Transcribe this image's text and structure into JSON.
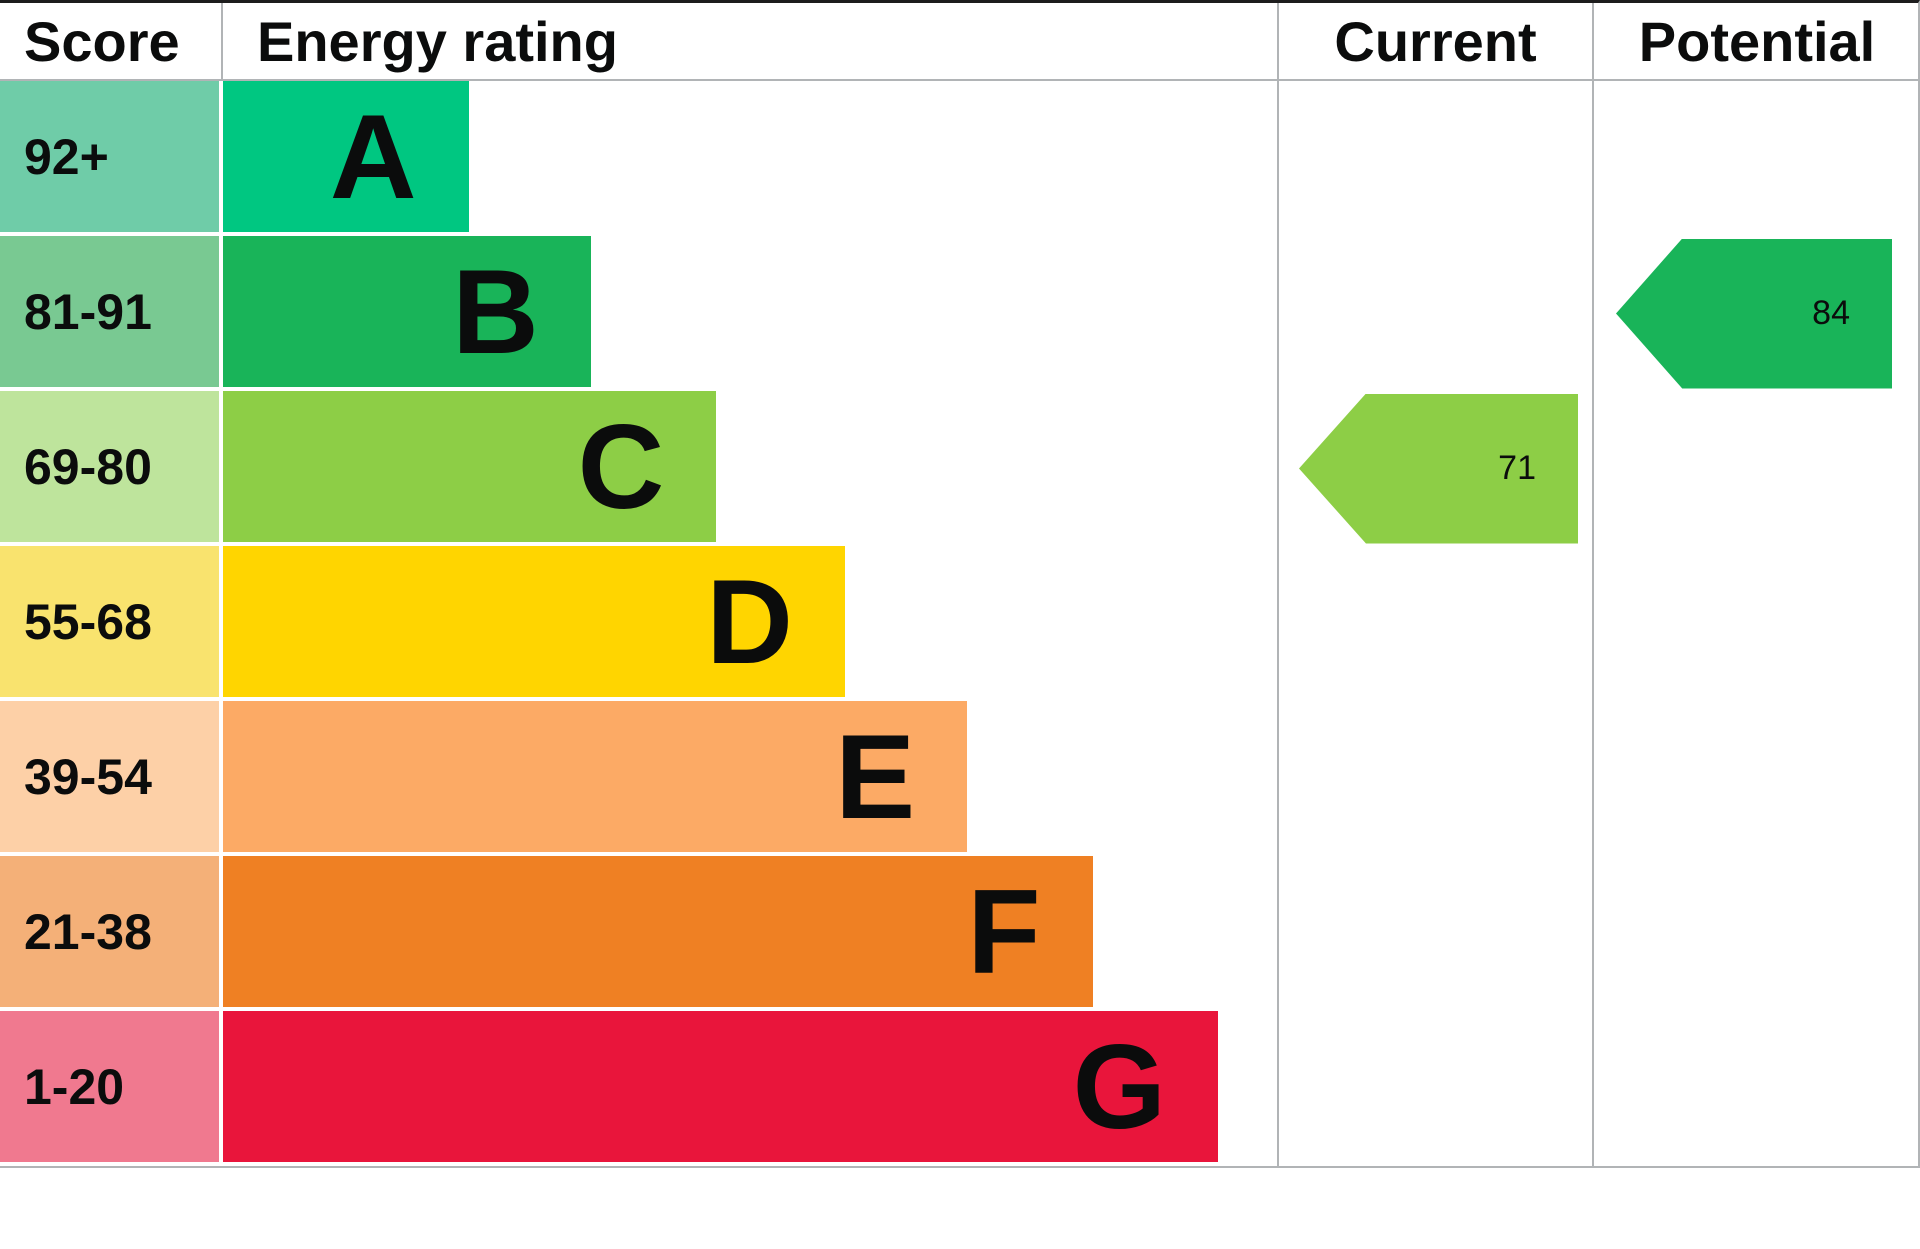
{
  "header": {
    "score": "Score",
    "energy_rating": "Energy rating",
    "current": "Current",
    "potential": "Potential"
  },
  "chart_data": {
    "type": "bar",
    "title": "EPC energy rating chart",
    "bands": [
      {
        "score": "92+",
        "letter": "A",
        "color": "#00c781",
        "score_bg": "#6fcca8",
        "width_pct": 23.3
      },
      {
        "score": "81-91",
        "letter": "B",
        "color": "#19b459",
        "score_bg": "#79c992",
        "width_pct": 34.9
      },
      {
        "score": "69-80",
        "letter": "C",
        "color": "#8dce46",
        "score_bg": "#bee49c",
        "width_pct": 46.8
      },
      {
        "score": "55-68",
        "letter": "D",
        "color": "#ffd500",
        "score_bg": "#f9e36e",
        "width_pct": 59.0
      },
      {
        "score": "39-54",
        "letter": "E",
        "color": "#fcaa65",
        "score_bg": "#fdd0a7",
        "width_pct": 70.6
      },
      {
        "score": "21-38",
        "letter": "F",
        "color": "#ef8023",
        "score_bg": "#f4b078",
        "width_pct": 82.5
      },
      {
        "score": "1-20",
        "letter": "G",
        "color": "#e9153b",
        "score_bg": "#f0798f",
        "width_pct": 94.4
      }
    ],
    "markers": [
      {
        "name": "current",
        "value": "71",
        "band": "C",
        "band_index": 2,
        "color": "#8dce46",
        "column": "current"
      },
      {
        "name": "potential",
        "value": "84",
        "band": "B",
        "band_index": 1,
        "color": "#19b459",
        "column": "potential"
      }
    ],
    "legend_position": "none",
    "grid": false
  }
}
